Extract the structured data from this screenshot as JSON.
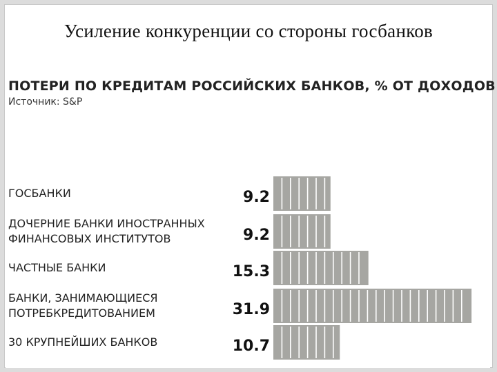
{
  "slide": {
    "title": "Усиление конкуренции со стороны госбанков"
  },
  "chart_data": {
    "type": "bar",
    "orientation": "horizontal",
    "title": "ПОТЕРИ ПО КРЕДИТАМ РОССИЙСКИХ БАНКОВ, % ОТ ДОХОДОВ",
    "subtitle": "Источник: S&P",
    "categories": [
      [
        "ГОСБАНКИ"
      ],
      [
        "ДОЧЕРНИЕ БАНКИ ИНОСТРАННЫХ",
        "ФИНАНСОВЫХ ИНСТИТУТОВ"
      ],
      [
        "ЧАСТНЫЕ БАНКИ"
      ],
      [
        "БАНКИ, ЗАНИМАЮЩИЕСЯ",
        "ПОТРЕБКРЕДИТОВАНИЕМ"
      ],
      [
        "30 КРУПНЕЙШИХ БАНКОВ"
      ]
    ],
    "values": [
      9.2,
      9.2,
      15.3,
      31.9,
      10.7
    ],
    "value_labels": [
      "9.2",
      "9.2",
      "15.3",
      "31.9",
      "10.7"
    ],
    "bar_color": "#a6a6a2",
    "segment_line_color": "#ffffff",
    "xlim": [
      0,
      33
    ]
  }
}
